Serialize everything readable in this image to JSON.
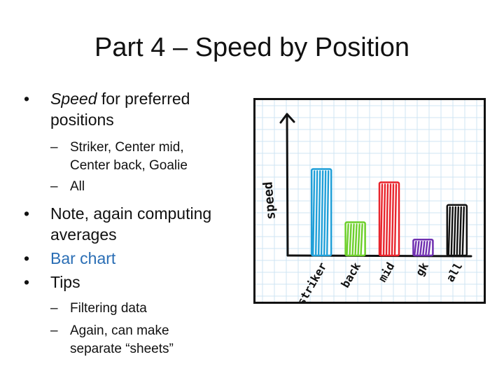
{
  "slide": {
    "title": "Part 4 – Speed by Position",
    "bullets": {
      "item1_em": "Speed",
      "item1_rest": " for preferred",
      "item1_line2": "positions",
      "sub1_line1": "Striker, Center mid,",
      "sub1_line2": "Center back, Goalie",
      "sub2": "All",
      "item2_line1": "Note, again computing",
      "item2_line2": "averages",
      "item3": "Bar chart",
      "item4": "Tips",
      "sub3": "Filtering data",
      "sub4_line1": "Again, can make",
      "sub4_line2": "separate “sheets”"
    },
    "bullet_glyph": "•",
    "dash_glyph": "–"
  },
  "chart_data": {
    "type": "bar",
    "categories": [
      "striker",
      "back",
      "mid",
      "gk",
      "all"
    ],
    "values": [
      6.5,
      2.5,
      5.5,
      1.2,
      3.8
    ],
    "title": "",
    "xlabel": "",
    "ylabel": "speed",
    "ylim": [
      0,
      10
    ],
    "grid": true,
    "colors": [
      "#1f9fd8",
      "#6ccf2a",
      "#e8242c",
      "#6f2fb0",
      "#111111"
    ],
    "grid_color": "#cfe4f3"
  }
}
